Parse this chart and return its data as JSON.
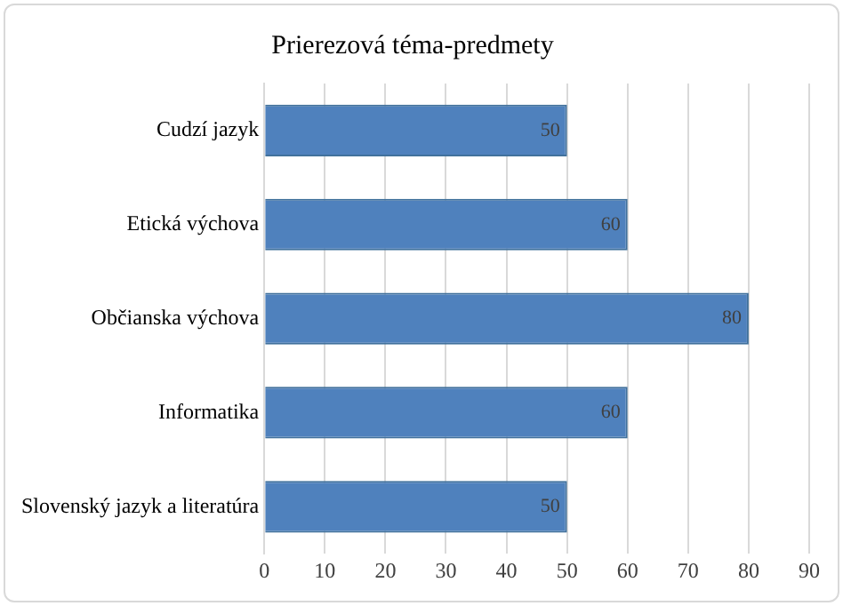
{
  "chart_data": {
    "type": "bar",
    "orientation": "horizontal",
    "title": "Prierezová téma-predmety",
    "categories": [
      "Cudzí jazyk",
      "Etická výchova",
      "Občianska výchova",
      "Informatika",
      "Slovenský jazyk a literatúra"
    ],
    "values": [
      50,
      60,
      80,
      60,
      50
    ],
    "color": "#4f81bd",
    "xlim": [
      0,
      90
    ],
    "xticks": [
      0,
      10,
      20,
      30,
      40,
      50,
      60,
      70,
      80,
      90
    ],
    "grid": "x",
    "data_labels": true
  }
}
